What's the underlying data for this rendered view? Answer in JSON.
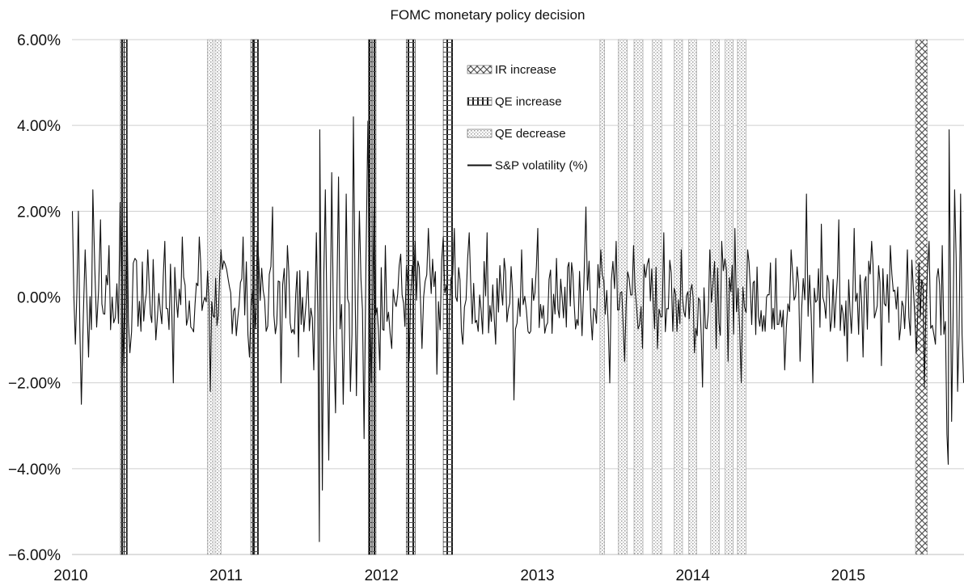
{
  "chart_data": {
    "type": "line",
    "title": "FOMC monetary policy decision",
    "xlabel": "",
    "ylabel": "",
    "x_range": [
      "2010-01-04",
      "2015-09-30"
    ],
    "ylim": [
      -0.06,
      0.06
    ],
    "y_ticks": [
      "6.00%",
      "4.00%",
      "2.00%",
      "0.00%",
      "−2.00%",
      "−4.00%",
      "−6.00%"
    ],
    "y_tick_values": [
      0.06,
      0.04,
      0.02,
      0.0,
      -0.02,
      -0.04,
      -0.06
    ],
    "x_ticks": [
      "2010",
      "2011",
      "2012",
      "2013",
      "2014",
      "2015"
    ],
    "grid": true,
    "legend_position": "top-center",
    "legend": [
      {
        "key": "ir",
        "label": "IR increase",
        "pattern": "crosshatch"
      },
      {
        "key": "qe_inc",
        "label": "QE increase",
        "pattern": "vertical-bars"
      },
      {
        "key": "qe_dec",
        "label": "QE decrease",
        "pattern": "dots"
      },
      {
        "key": "sp",
        "label": "S&P volatility (%)",
        "pattern": "line"
      }
    ],
    "events": [
      {
        "type": "qe_inc",
        "start": "2010-04-28",
        "end": "2010-05-06"
      },
      {
        "type": "qe_inc",
        "start": "2010-05-07",
        "end": "2010-05-14"
      },
      {
        "type": "qe_dec",
        "start": "2010-11-18",
        "end": "2010-12-01"
      },
      {
        "type": "qe_dec",
        "start": "2010-12-06",
        "end": "2010-12-20"
      },
      {
        "type": "qe_inc",
        "start": "2011-02-28",
        "end": "2011-03-08"
      },
      {
        "type": "qe_inc",
        "start": "2011-03-09",
        "end": "2011-03-18"
      },
      {
        "type": "qe_inc",
        "start": "2011-12-01",
        "end": "2011-12-09"
      },
      {
        "type": "qe_inc",
        "start": "2011-12-11",
        "end": "2011-12-19"
      },
      {
        "type": "qe_inc",
        "start": "2012-02-28",
        "end": "2012-03-20"
      },
      {
        "type": "qe_inc",
        "start": "2012-05-25",
        "end": "2012-06-16"
      },
      {
        "type": "qe_dec",
        "start": "2013-05-28",
        "end": "2013-06-08"
      },
      {
        "type": "qe_dec",
        "start": "2013-07-10",
        "end": "2013-07-31"
      },
      {
        "type": "qe_dec",
        "start": "2013-08-16",
        "end": "2013-09-06"
      },
      {
        "type": "qe_dec",
        "start": "2013-09-28",
        "end": "2013-10-20"
      },
      {
        "type": "qe_dec",
        "start": "2013-11-18",
        "end": "2013-12-08"
      },
      {
        "type": "qe_dec",
        "start": "2013-12-22",
        "end": "2014-01-10"
      },
      {
        "type": "qe_dec",
        "start": "2014-02-12",
        "end": "2014-03-04"
      },
      {
        "type": "qe_dec",
        "start": "2014-03-18",
        "end": "2014-04-06"
      },
      {
        "type": "qe_dec",
        "start": "2014-04-16",
        "end": "2014-05-06"
      },
      {
        "type": "ir",
        "start": "2015-06-08",
        "end": "2015-07-06"
      }
    ],
    "series": [
      {
        "key": "sp",
        "name": "S&P volatility (%)",
        "points": [
          [
            "2010-01-05",
            0.02
          ],
          [
            "2010-01-12",
            -0.011
          ],
          [
            "2010-01-19",
            0.02
          ],
          [
            "2010-01-26",
            -0.025
          ],
          [
            "2010-02-04",
            0.011
          ],
          [
            "2010-02-12",
            -0.014
          ],
          [
            "2010-02-22",
            0.025
          ],
          [
            "2010-03-03",
            -0.007
          ],
          [
            "2010-03-12",
            0.018
          ],
          [
            "2010-03-22",
            -0.004
          ],
          [
            "2010-04-01",
            0.012
          ],
          [
            "2010-04-12",
            -0.006
          ],
          [
            "2010-04-27",
            0.022
          ],
          [
            "2010-05-06",
            -0.016
          ],
          [
            "2010-05-13",
            0.023
          ],
          [
            "2010-05-20",
            -0.013
          ],
          [
            "2010-06-01",
            0.009
          ],
          [
            "2010-06-15",
            -0.008
          ],
          [
            "2010-07-01",
            0.011
          ],
          [
            "2010-07-20",
            -0.01
          ],
          [
            "2010-08-10",
            0.013
          ],
          [
            "2010-08-30",
            -0.02
          ],
          [
            "2010-09-20",
            0.014
          ],
          [
            "2010-10-10",
            -0.007
          ],
          [
            "2010-10-30",
            0.014
          ],
          [
            "2010-11-25",
            -0.022
          ],
          [
            "2010-12-20",
            0.011
          ],
          [
            "2011-01-25",
            -0.009
          ],
          [
            "2011-02-10",
            0.014
          ],
          [
            "2011-02-25",
            -0.014
          ],
          [
            "2011-03-15",
            0.013
          ],
          [
            "2011-04-05",
            -0.008
          ],
          [
            "2011-04-20",
            0.021
          ],
          [
            "2011-05-10",
            -0.02
          ],
          [
            "2011-05-25",
            0.012
          ],
          [
            "2011-06-20",
            -0.014
          ],
          [
            "2011-07-12",
            0.006
          ],
          [
            "2011-07-26",
            -0.017
          ],
          [
            "2011-08-01",
            0.015
          ],
          [
            "2011-08-08",
            -0.057
          ],
          [
            "2011-08-09",
            0.039
          ],
          [
            "2011-08-15",
            -0.045
          ],
          [
            "2011-08-22",
            0.025
          ],
          [
            "2011-08-30",
            -0.038
          ],
          [
            "2011-09-06",
            0.029
          ],
          [
            "2011-09-15",
            -0.027
          ],
          [
            "2011-09-22",
            0.028
          ],
          [
            "2011-10-03",
            -0.025
          ],
          [
            "2011-10-10",
            0.024
          ],
          [
            "2011-10-20",
            -0.022
          ],
          [
            "2011-10-27",
            0.042
          ],
          [
            "2011-11-03",
            -0.023
          ],
          [
            "2011-11-10",
            0.02
          ],
          [
            "2011-11-21",
            -0.033
          ],
          [
            "2011-11-30",
            0.041
          ],
          [
            "2011-12-08",
            -0.02
          ],
          [
            "2011-12-15",
            0.025
          ],
          [
            "2011-12-28",
            -0.017
          ],
          [
            "2012-01-10",
            0.012
          ],
          [
            "2012-01-25",
            -0.012
          ],
          [
            "2012-02-15",
            0.01
          ],
          [
            "2012-03-06",
            -0.015
          ],
          [
            "2012-03-20",
            0.013
          ],
          [
            "2012-04-05",
            -0.012
          ],
          [
            "2012-04-20",
            0.016
          ],
          [
            "2012-05-10",
            -0.018
          ],
          [
            "2012-05-25",
            0.014
          ],
          [
            "2012-06-05",
            -0.022
          ],
          [
            "2012-06-20",
            0.016
          ],
          [
            "2012-07-10",
            -0.011
          ],
          [
            "2012-07-25",
            0.015
          ],
          [
            "2012-08-15",
            -0.008
          ],
          [
            "2012-09-05",
            0.015
          ],
          [
            "2012-09-25",
            -0.011
          ],
          [
            "2012-10-15",
            0.009
          ],
          [
            "2012-11-07",
            -0.024
          ],
          [
            "2012-11-25",
            0.011
          ],
          [
            "2012-12-10",
            -0.008
          ],
          [
            "2013-01-02",
            0.016
          ],
          [
            "2013-01-25",
            -0.006
          ],
          [
            "2013-02-15",
            0.009
          ],
          [
            "2013-03-10",
            -0.007
          ],
          [
            "2013-04-10",
            0.006
          ],
          [
            "2013-04-16",
            -0.009
          ],
          [
            "2013-04-25",
            0.021
          ],
          [
            "2013-05-10",
            -0.01
          ],
          [
            "2013-05-30",
            0.011
          ],
          [
            "2013-06-20",
            -0.02
          ],
          [
            "2013-07-05",
            0.013
          ],
          [
            "2013-07-25",
            -0.015
          ],
          [
            "2013-08-15",
            0.012
          ],
          [
            "2013-09-05",
            -0.012
          ],
          [
            "2013-09-20",
            0.009
          ],
          [
            "2013-10-10",
            -0.012
          ],
          [
            "2013-10-25",
            0.015
          ],
          [
            "2013-11-15",
            -0.008
          ],
          [
            "2013-12-05",
            0.011
          ],
          [
            "2014-01-05",
            -0.013
          ],
          [
            "2014-01-24",
            -0.021
          ],
          [
            "2014-02-10",
            0.011
          ],
          [
            "2014-02-25",
            -0.012
          ],
          [
            "2014-03-10",
            0.013
          ],
          [
            "2014-03-25",
            -0.015
          ],
          [
            "2014-04-10",
            0.016
          ],
          [
            "2014-04-25",
            -0.02
          ],
          [
            "2014-05-10",
            0.011
          ],
          [
            "2014-06-01",
            0.007
          ],
          [
            "2014-06-20",
            -0.008
          ],
          [
            "2014-07-15",
            0.009
          ],
          [
            "2014-08-05",
            -0.017
          ],
          [
            "2014-08-20",
            0.011
          ],
          [
            "2014-09-10",
            -0.015
          ],
          [
            "2014-09-25",
            0.024
          ],
          [
            "2014-10-10",
            -0.02
          ],
          [
            "2014-10-30",
            0.017
          ],
          [
            "2014-11-20",
            -0.008
          ],
          [
            "2014-12-10",
            0.018
          ],
          [
            "2014-12-30",
            -0.015
          ],
          [
            "2015-01-15",
            0.016
          ],
          [
            "2015-02-05",
            -0.014
          ],
          [
            "2015-02-25",
            0.013
          ],
          [
            "2015-03-20",
            -0.016
          ],
          [
            "2015-04-10",
            0.012
          ],
          [
            "2015-05-01",
            -0.01
          ],
          [
            "2015-05-20",
            0.011
          ],
          [
            "2015-06-10",
            -0.013
          ],
          [
            "2015-06-29",
            -0.021
          ],
          [
            "2015-07-10",
            0.013
          ],
          [
            "2015-07-25",
            -0.011
          ],
          [
            "2015-08-10",
            0.012
          ],
          [
            "2015-08-21",
            -0.032
          ],
          [
            "2015-08-24",
            -0.039
          ],
          [
            "2015-08-26",
            0.039
          ],
          [
            "2015-09-01",
            -0.029
          ],
          [
            "2015-09-08",
            0.025
          ],
          [
            "2015-09-15",
            -0.022
          ],
          [
            "2015-09-22",
            0.024
          ],
          [
            "2015-09-29",
            -0.02
          ]
        ]
      }
    ]
  }
}
